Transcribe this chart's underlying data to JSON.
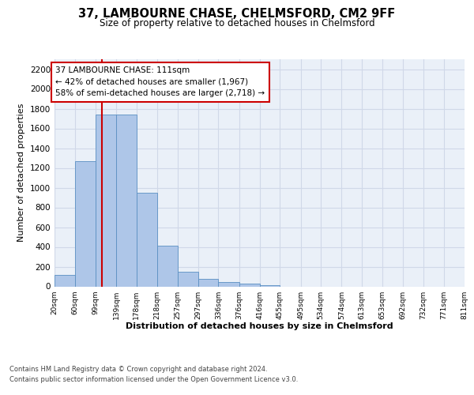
{
  "title": "37, LAMBOURNE CHASE, CHELMSFORD, CM2 9FF",
  "subtitle": "Size of property relative to detached houses in Chelmsford",
  "xlabel": "Distribution of detached houses by size in Chelmsford",
  "ylabel": "Number of detached properties",
  "bin_edges": [
    20,
    60,
    99,
    139,
    178,
    218,
    257,
    297,
    336,
    376,
    416,
    455,
    495,
    534,
    574,
    613,
    653,
    692,
    732,
    771,
    811
  ],
  "bar_heights": [
    120,
    1270,
    1740,
    1740,
    950,
    410,
    150,
    80,
    45,
    30,
    15,
    0,
    0,
    0,
    0,
    0,
    0,
    0,
    0,
    0
  ],
  "bar_color": "#aec6e8",
  "bar_edge_color": "#5a8fc2",
  "vline_x": 111,
  "vline_color": "#cc0000",
  "ylim": [
    0,
    2300
  ],
  "yticks": [
    0,
    200,
    400,
    600,
    800,
    1000,
    1200,
    1400,
    1600,
    1800,
    2000,
    2200
  ],
  "annotation_title": "37 LAMBOURNE CHASE: 111sqm",
  "annotation_line1": "← 42% of detached houses are smaller (1,967)",
  "annotation_line2": "58% of semi-detached houses are larger (2,718) →",
  "annotation_box_color": "#ffffff",
  "annotation_box_edge": "#cc0000",
  "grid_color": "#d0d8e8",
  "background_color": "#eaf0f8",
  "footer_line1": "Contains HM Land Registry data © Crown copyright and database right 2024.",
  "footer_line2": "Contains public sector information licensed under the Open Government Licence v3.0.",
  "tick_labels": [
    "20sqm",
    "60sqm",
    "99sqm",
    "139sqm",
    "178sqm",
    "218sqm",
    "257sqm",
    "297sqm",
    "336sqm",
    "376sqm",
    "416sqm",
    "455sqm",
    "495sqm",
    "534sqm",
    "574sqm",
    "613sqm",
    "653sqm",
    "692sqm",
    "732sqm",
    "771sqm",
    "811sqm"
  ]
}
